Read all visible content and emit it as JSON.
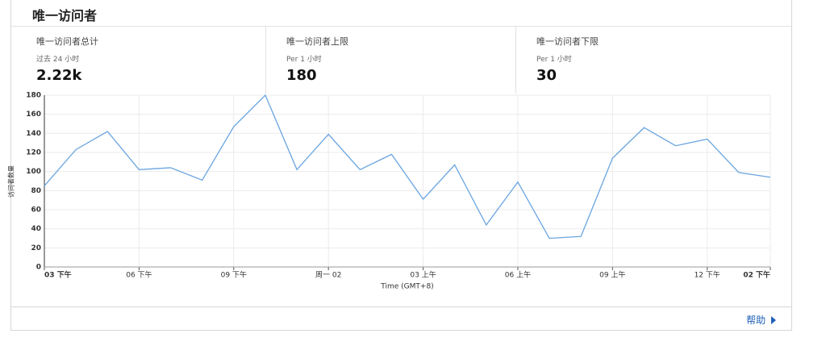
{
  "card": {
    "title": "唯一访问者",
    "stats": [
      {
        "label": "唯一访问者总计",
        "sublabel": "过去 24 小时",
        "value": "2.22k"
      },
      {
        "label": "唯一访问者上限",
        "sublabel": "Per 1 小时",
        "value": "180"
      },
      {
        "label": "唯一访问者下限",
        "sublabel": "Per 1 小时",
        "value": "30"
      }
    ],
    "help": "帮助"
  },
  "chart_data": {
    "type": "line",
    "y_label": "访问者数量",
    "x_label": "Time (GMT+8)",
    "categories": [
      "03 下午",
      null,
      null,
      "06 下午",
      null,
      null,
      "09 下午",
      null,
      null,
      "周一 02",
      null,
      null,
      "03 上午",
      null,
      null,
      "06 上午",
      null,
      null,
      "09 上午",
      null,
      null,
      "12 下午",
      null,
      "02 下午"
    ],
    "series": [
      {
        "name": "唯一访问者",
        "color": "#6aa5e0",
        "values": [
          85,
          123,
          142,
          102,
          104,
          91,
          147,
          180,
          102,
          139,
          102,
          118,
          71,
          107,
          44,
          89,
          30,
          32,
          114,
          146,
          127,
          134,
          99,
          94
        ]
      }
    ],
    "ylim": [
      0,
      180
    ],
    "yticks": [
      0,
      20,
      40,
      60,
      80,
      100,
      120,
      140,
      160,
      180
    ],
    "grid": true
  }
}
